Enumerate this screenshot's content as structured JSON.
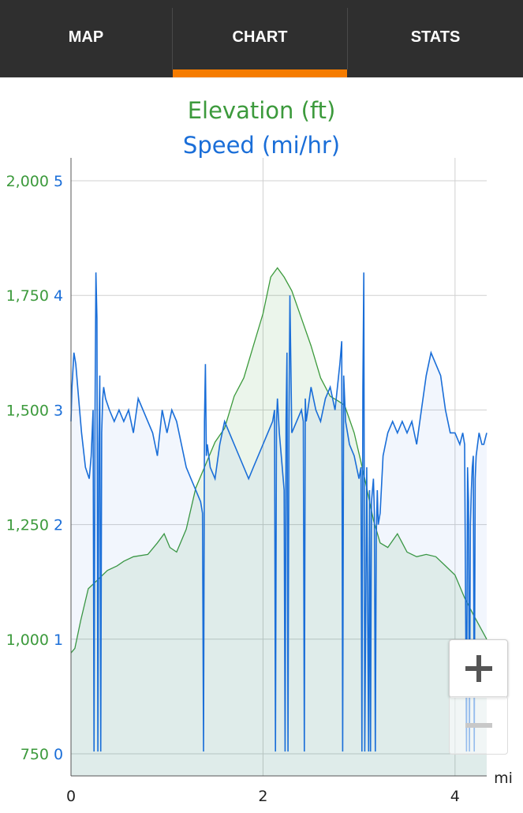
{
  "tabs": [
    {
      "label": "MAP",
      "active": false
    },
    {
      "label": "CHART",
      "active": true
    },
    {
      "label": "STATS",
      "active": false
    }
  ],
  "colors": {
    "tabbar": "#2f2f2f",
    "accent": "#f57c00",
    "elevation": "#3c9a3c",
    "speed": "#1a6ed8"
  },
  "zoom": {
    "in_icon": "plus-icon",
    "out_icon": "minus-icon",
    "out_enabled": false
  },
  "chart_data": {
    "type": "line",
    "title": "Elevation (ft)",
    "subtitle": "Speed (mi/hr)",
    "x_unit": "mi",
    "xlim": [
      0,
      4.33
    ],
    "x_ticks": [
      "0",
      "2",
      "4"
    ],
    "x_tick_values": [
      0,
      2,
      4
    ],
    "y_left": {
      "lim": [
        750,
        2000
      ],
      "ticks": [
        "2,000",
        "1,750",
        "1,500",
        "1,250",
        "1,000",
        "750"
      ],
      "tick_values": [
        2000,
        1750,
        1500,
        1250,
        1000,
        750
      ]
    },
    "y_right": {
      "lim": [
        0,
        5
      ],
      "ticks": [
        "5",
        "4",
        "3",
        "2",
        "1",
        "0"
      ],
      "tick_values": [
        5,
        4,
        3,
        2,
        1,
        0
      ]
    },
    "grid": true,
    "series": [
      {
        "name": "Elevation (ft)",
        "axis": "left",
        "x": [
          0,
          0.04,
          0.1,
          0.18,
          0.28,
          0.38,
          0.48,
          0.55,
          0.65,
          0.8,
          0.9,
          0.97,
          1.03,
          1.1,
          1.2,
          1.3,
          1.4,
          1.5,
          1.6,
          1.7,
          1.8,
          1.9,
          2.0,
          2.08,
          2.15,
          2.22,
          2.3,
          2.4,
          2.5,
          2.6,
          2.7,
          2.78,
          2.85,
          2.95,
          3.05,
          3.15,
          3.22,
          3.3,
          3.4,
          3.5,
          3.6,
          3.7,
          3.8,
          3.9,
          4.0,
          4.1,
          4.2,
          4.33
        ],
        "values": [
          970,
          980,
          1040,
          1110,
          1130,
          1150,
          1160,
          1170,
          1180,
          1185,
          1210,
          1230,
          1200,
          1190,
          1240,
          1330,
          1380,
          1430,
          1460,
          1530,
          1570,
          1640,
          1710,
          1790,
          1810,
          1790,
          1760,
          1700,
          1640,
          1570,
          1530,
          1520,
          1510,
          1450,
          1360,
          1260,
          1210,
          1200,
          1230,
          1190,
          1180,
          1185,
          1180,
          1160,
          1140,
          1090,
          1050,
          1000
        ]
      },
      {
        "name": "Speed (mi/hr)",
        "axis": "right",
        "x": [
          0,
          0.01,
          0.03,
          0.05,
          0.08,
          0.11,
          0.15,
          0.19,
          0.21,
          0.23,
          0.24,
          0.25,
          0.26,
          0.27,
          0.28,
          0.29,
          0.3,
          0.31,
          0.32,
          0.33,
          0.34,
          0.36,
          0.4,
          0.45,
          0.5,
          0.55,
          0.6,
          0.65,
          0.7,
          0.75,
          0.8,
          0.85,
          0.9,
          0.95,
          1.0,
          1.05,
          1.1,
          1.15,
          1.2,
          1.25,
          1.3,
          1.35,
          1.37,
          1.38,
          1.39,
          1.4,
          1.41,
          1.42,
          1.45,
          1.5,
          1.55,
          1.6,
          1.65,
          1.7,
          1.75,
          1.8,
          1.85,
          1.9,
          1.95,
          2.0,
          2.05,
          2.1,
          2.12,
          2.13,
          2.14,
          2.15,
          2.17,
          2.2,
          2.22,
          2.23,
          2.24,
          2.25,
          2.26,
          2.27,
          2.28,
          2.3,
          2.35,
          2.4,
          2.42,
          2.43,
          2.44,
          2.45,
          2.5,
          2.55,
          2.6,
          2.65,
          2.7,
          2.75,
          2.8,
          2.82,
          2.83,
          2.84,
          2.85,
          2.86,
          2.9,
          2.95,
          3.0,
          3.02,
          3.03,
          3.04,
          3.05,
          3.06,
          3.08,
          3.1,
          3.11,
          3.12,
          3.13,
          3.15,
          3.16,
          3.17,
          3.18,
          3.19,
          3.2,
          3.22,
          3.25,
          3.3,
          3.35,
          3.4,
          3.45,
          3.5,
          3.55,
          3.6,
          3.65,
          3.7,
          3.75,
          3.8,
          3.85,
          3.9,
          3.95,
          4.0,
          4.05,
          4.08,
          4.1,
          4.12,
          4.13,
          4.14,
          4.15,
          4.16,
          4.17,
          4.18,
          4.19,
          4.2,
          4.21,
          4.22,
          4.25,
          4.28,
          4.3,
          4.33
        ],
        "values": [
          2.9,
          3.2,
          3.5,
          3.4,
          3.1,
          2.8,
          2.5,
          2.4,
          2.6,
          3.0,
          0.02,
          2.9,
          4.2,
          3.8,
          0.02,
          2.7,
          3.3,
          0.02,
          2.8,
          3.1,
          3.2,
          3.1,
          3.0,
          2.9,
          3.0,
          2.9,
          3.0,
          2.8,
          3.1,
          3.0,
          2.9,
          2.8,
          2.6,
          3.0,
          2.8,
          3.0,
          2.9,
          2.7,
          2.5,
          2.4,
          2.3,
          2.2,
          2.1,
          0.02,
          2.9,
          3.4,
          2.6,
          2.7,
          2.5,
          2.4,
          2.7,
          2.9,
          2.8,
          2.7,
          2.6,
          2.5,
          2.4,
          2.5,
          2.6,
          2.7,
          2.8,
          2.9,
          3.0,
          0.02,
          2.9,
          3.1,
          2.8,
          2.5,
          2.3,
          0.02,
          2.9,
          3.5,
          0.02,
          2.9,
          4.0,
          2.8,
          2.9,
          3.0,
          2.9,
          0.02,
          3.1,
          2.9,
          3.2,
          3.0,
          2.9,
          3.1,
          3.2,
          3.0,
          3.4,
          3.6,
          0.02,
          3.3,
          3.1,
          2.9,
          2.7,
          2.6,
          2.4,
          2.5,
          0.02,
          3.2,
          4.2,
          0.02,
          2.5,
          0.02,
          2.3,
          0.02,
          2.2,
          2.4,
          2.1,
          0.02,
          1.9,
          2.3,
          2.0,
          2.1,
          2.6,
          2.8,
          2.9,
          2.8,
          2.9,
          2.8,
          2.9,
          2.7,
          3.0,
          3.3,
          3.5,
          3.4,
          3.3,
          3.0,
          2.8,
          2.8,
          2.7,
          2.8,
          2.7,
          0.02,
          2.5,
          2.2,
          0.02,
          2.0,
          2.3,
          2.5,
          2.6,
          0.02,
          2.4,
          2.6,
          2.8,
          2.7,
          2.7,
          2.8
        ]
      }
    ]
  }
}
